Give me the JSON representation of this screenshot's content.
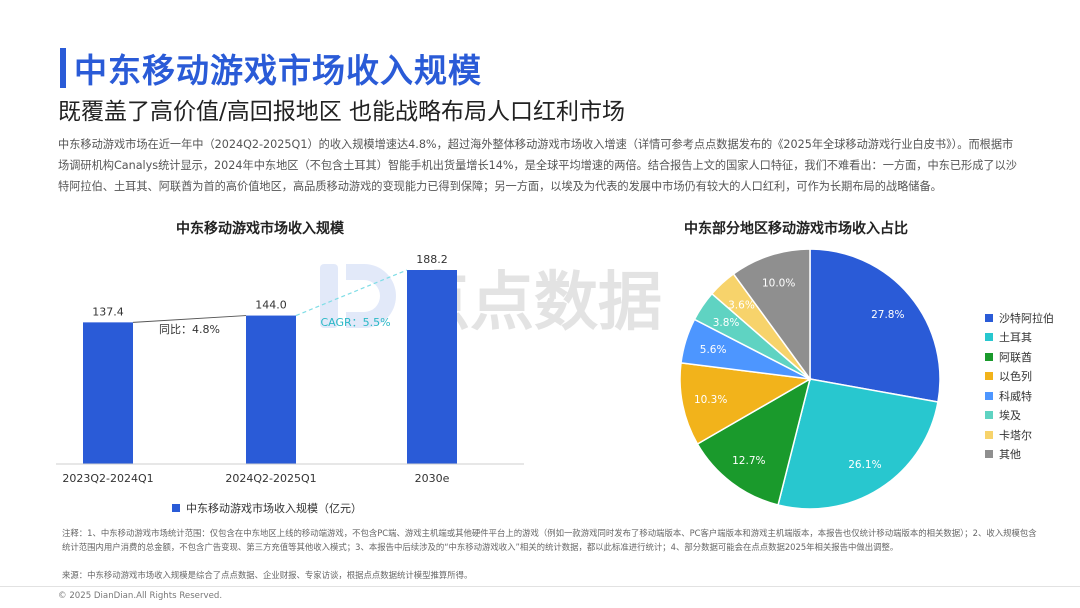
{
  "header": {
    "title": "中东移动游戏市场收入规模",
    "subtitle": "既覆盖了高价值/高回报地区 也能战略布局人口红利市场"
  },
  "intro": "中东移动游戏市场在近一年中（2024Q2-2025Q1）的收入规模增速达4.8%，超过海外整体移动游戏市场收入增速（详情可参考点点数据发布的《2025年全球移动游戏行业白皮书》）。而根据市场调研机构Canalys统计显示，2024年中东地区（不包含土耳其）智能手机出货量增长14%，是全球平均增速的两倍。结合报告上文的国家人口特征，我们不难看出：一方面，中东已形成了以沙特阿拉伯、土耳其、阿联酋为首的高价值地区，高品质移动游戏的变现能力已得到保障；另一方面，以埃及为代表的发展中市场仍有较大的人口红利，可作为长期布局的战略储备。",
  "watermark": "点点数据",
  "colors": {
    "accent": "#2a5bd7"
  },
  "chart_data": [
    {
      "type": "bar",
      "title": "中东移动游戏市场收入规模",
      "categories": [
        "2023Q2-2024Q1",
        "2024Q2-2025Q1",
        "2030e"
      ],
      "series": [
        {
          "name": "中东移动游戏市场收入规模（亿元）",
          "values": [
            137.4,
            144.0,
            188.2
          ],
          "color": "#2a5bd7"
        }
      ],
      "value_labels": [
        "137.4",
        "144.0",
        "188.2"
      ],
      "annotations": {
        "yoy": "同比：4.8%",
        "cagr": "CAGR：5.5%"
      },
      "ylim": [
        0,
        188.2
      ]
    },
    {
      "type": "pie",
      "title": "中东部分地区移动游戏市场收入占比",
      "slices": [
        {
          "name": "沙特阿拉伯",
          "value": 27.8,
          "label": "27.8%",
          "color": "#2a5bd7"
        },
        {
          "name": "土耳其",
          "value": 26.1,
          "label": "26.1%",
          "color": "#28c7cf"
        },
        {
          "name": "阿联酋",
          "value": 12.7,
          "label": "12.7%",
          "color": "#1a9a2c"
        },
        {
          "name": "以色列",
          "value": 10.3,
          "label": "10.3%",
          "color": "#f2b31b"
        },
        {
          "name": "科威特",
          "value": 5.6,
          "label": "5.6%",
          "color": "#4d96ff"
        },
        {
          "name": "埃及",
          "value": 3.8,
          "label": "3.8%",
          "color": "#5fd3c2"
        },
        {
          "name": "卡塔尔",
          "value": 3.6,
          "label": "3.6%",
          "color": "#f7d36b"
        },
        {
          "name": "其他",
          "value": 10.0,
          "label": "10.0%",
          "color": "#8f8f8f"
        }
      ],
      "legend_position": "right"
    }
  ],
  "notes": "注释：1、中东移动游戏市场统计范围：仅包含在中东地区上线的移动端游戏，不包含PC端、游戏主机端或其他硬件平台上的游戏（例如一款游戏同时发布了移动端版本、PC客户端版本和游戏主机端版本，本报告也仅统计移动端版本的相关数据）；2、收入规模包含统计范围内用户消费的总金额，不包含广告变现、第三方充值等其他收入模式；3、本报告中后续涉及的“中东移动游戏收入”相关的统计数据，都以此标准进行统计；4、部分数据可能会在点点数据2025年相关报告中做出调整。",
  "source": "来源：中东移动游戏市场收入规模是综合了点点数据、企业财报、专家访谈，根据点点数据统计模型推算所得。",
  "copyright": "© 2025 DianDian.All Rights Reserved."
}
